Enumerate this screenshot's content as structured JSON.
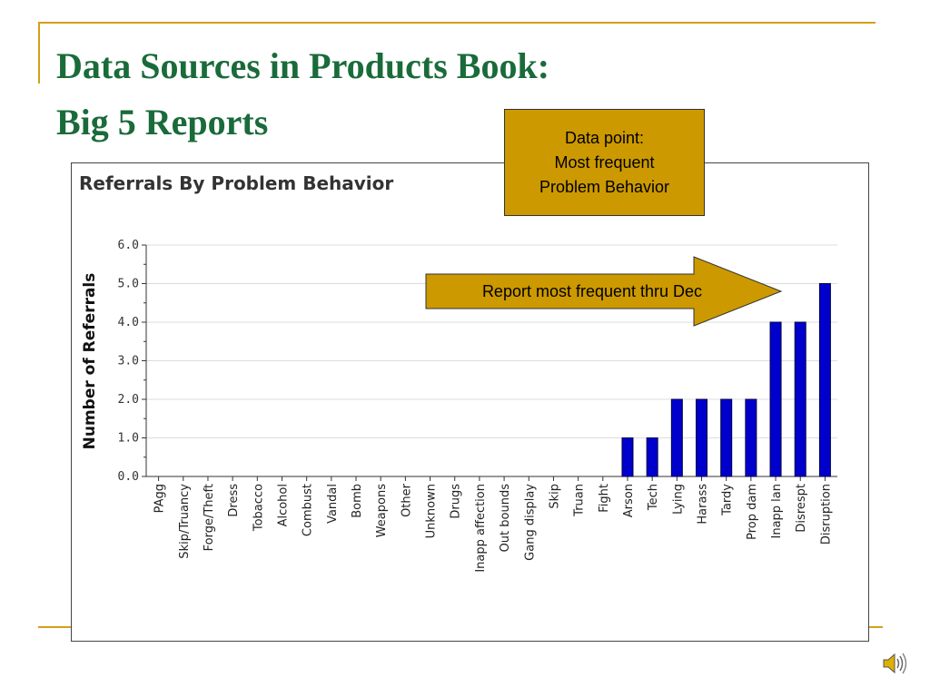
{
  "slide": {
    "title_line1": "Data Sources in Products Book:",
    "title_line2": "Big 5 Reports",
    "accent_color": "#d4a017",
    "title_color": "#1a6b3a"
  },
  "callout": {
    "line1": "Data point:",
    "line2": "Most frequent",
    "line3": "Problem Behavior",
    "fill_color": "#cc9900"
  },
  "arrow": {
    "text": "Report most frequent thru Dec",
    "fill_color": "#cc9900"
  },
  "speaker": {
    "icon": "speaker-icon"
  },
  "chart_data": {
    "type": "bar",
    "title": "Referrals By Problem Behavior",
    "xlabel": "",
    "ylabel": "Number of Referrals",
    "ylim": [
      0,
      6
    ],
    "yticks": [
      "0.0",
      "1.0",
      "2.0",
      "3.0",
      "4.0",
      "5.0",
      "6.0"
    ],
    "grid": true,
    "bar_color": "#0000cc",
    "categories": [
      "PAgg",
      "Skip/Truancy",
      "Forge/Theft",
      "Dress",
      "Tobacco",
      "Alcohol",
      "Combust",
      "Vandal",
      "Bomb",
      "Weapons",
      "Other",
      "Unknown",
      "Drugs",
      "Inapp affection",
      "Out bounds",
      "Gang display",
      "Skip",
      "Truan",
      "Fight",
      "Arson",
      "Tech",
      "Lying",
      "Harass",
      "Tardy",
      "Prop dam",
      "Inapp lan",
      "Disrespt",
      "Disruption"
    ],
    "values": [
      0,
      0,
      0,
      0,
      0,
      0,
      0,
      0,
      0,
      0,
      0,
      0,
      0,
      0,
      0,
      0,
      0,
      0,
      0,
      1,
      1,
      2,
      2,
      2,
      2,
      4,
      4,
      5
    ]
  }
}
